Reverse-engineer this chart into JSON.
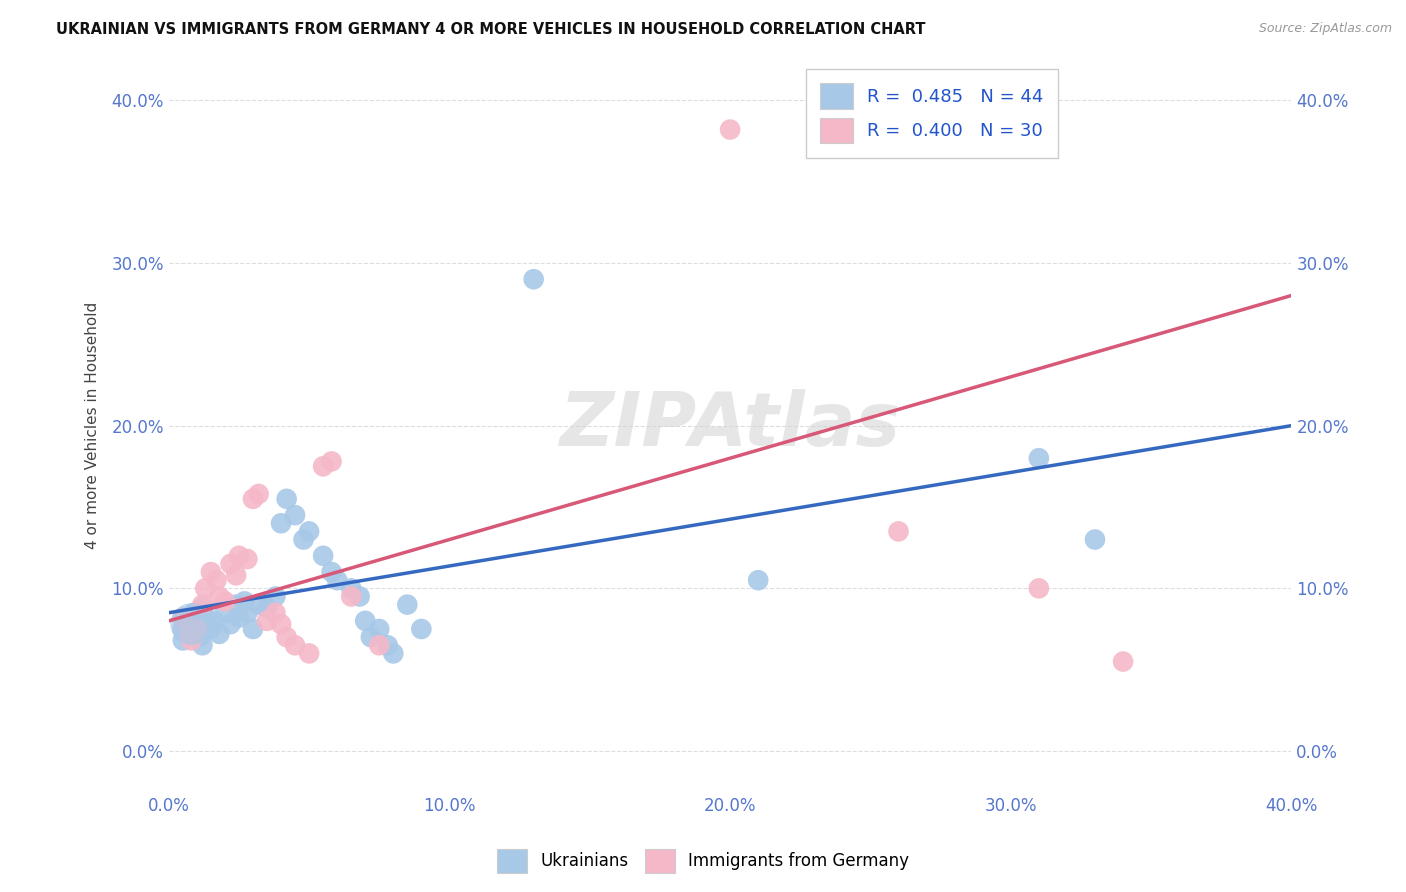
{
  "title": "UKRAINIAN VS IMMIGRANTS FROM GERMANY 4 OR MORE VEHICLES IN HOUSEHOLD CORRELATION CHART",
  "source": "Source: ZipAtlas.com",
  "ylabel": "4 or more Vehicles in Household",
  "xlim": [
    0.0,
    0.4
  ],
  "ylim": [
    -0.025,
    0.425
  ],
  "blue_R": "0.485",
  "blue_N": "44",
  "pink_R": "0.400",
  "pink_N": "30",
  "blue_color": "#a8c8e8",
  "pink_color": "#f5b8c8",
  "blue_line_color": "#3568c0",
  "pink_line_color": "#d85878",
  "legend_label_blue": "Ukrainians",
  "legend_label_pink": "Immigrants from Germany",
  "watermark": "ZIPAtlas",
  "blue_points": [
    [
      0.005,
      0.075
    ],
    [
      0.005,
      0.068
    ],
    [
      0.007,
      0.08
    ],
    [
      0.008,
      0.072
    ],
    [
      0.009,
      0.085
    ],
    [
      0.01,
      0.078
    ],
    [
      0.011,
      0.07
    ],
    [
      0.012,
      0.065
    ],
    [
      0.012,
      0.088
    ],
    [
      0.013,
      0.082
    ],
    [
      0.015,
      0.075
    ],
    [
      0.016,
      0.08
    ],
    [
      0.018,
      0.072
    ],
    [
      0.02,
      0.085
    ],
    [
      0.022,
      0.078
    ],
    [
      0.024,
      0.09
    ],
    [
      0.025,
      0.082
    ],
    [
      0.027,
      0.092
    ],
    [
      0.028,
      0.085
    ],
    [
      0.03,
      0.075
    ],
    [
      0.032,
      0.09
    ],
    [
      0.035,
      0.088
    ],
    [
      0.038,
      0.095
    ],
    [
      0.04,
      0.14
    ],
    [
      0.042,
      0.155
    ],
    [
      0.045,
      0.145
    ],
    [
      0.048,
      0.13
    ],
    [
      0.05,
      0.135
    ],
    [
      0.055,
      0.12
    ],
    [
      0.058,
      0.11
    ],
    [
      0.06,
      0.105
    ],
    [
      0.065,
      0.1
    ],
    [
      0.068,
      0.095
    ],
    [
      0.07,
      0.08
    ],
    [
      0.072,
      0.07
    ],
    [
      0.075,
      0.075
    ],
    [
      0.078,
      0.065
    ],
    [
      0.08,
      0.06
    ],
    [
      0.085,
      0.09
    ],
    [
      0.09,
      0.075
    ],
    [
      0.13,
      0.29
    ],
    [
      0.21,
      0.105
    ],
    [
      0.31,
      0.18
    ],
    [
      0.33,
      0.13
    ]
  ],
  "pink_points": [
    [
      0.005,
      0.082
    ],
    [
      0.007,
      0.072
    ],
    [
      0.008,
      0.068
    ],
    [
      0.01,
      0.075
    ],
    [
      0.012,
      0.09
    ],
    [
      0.013,
      0.1
    ],
    [
      0.015,
      0.11
    ],
    [
      0.017,
      0.105
    ],
    [
      0.018,
      0.095
    ],
    [
      0.02,
      0.092
    ],
    [
      0.022,
      0.115
    ],
    [
      0.024,
      0.108
    ],
    [
      0.025,
      0.12
    ],
    [
      0.028,
      0.118
    ],
    [
      0.03,
      0.155
    ],
    [
      0.032,
      0.158
    ],
    [
      0.035,
      0.08
    ],
    [
      0.038,
      0.085
    ],
    [
      0.04,
      0.078
    ],
    [
      0.042,
      0.07
    ],
    [
      0.045,
      0.065
    ],
    [
      0.05,
      0.06
    ],
    [
      0.055,
      0.175
    ],
    [
      0.058,
      0.178
    ],
    [
      0.065,
      0.095
    ],
    [
      0.075,
      0.065
    ],
    [
      0.2,
      0.382
    ],
    [
      0.26,
      0.135
    ],
    [
      0.31,
      0.1
    ],
    [
      0.34,
      0.055
    ]
  ]
}
